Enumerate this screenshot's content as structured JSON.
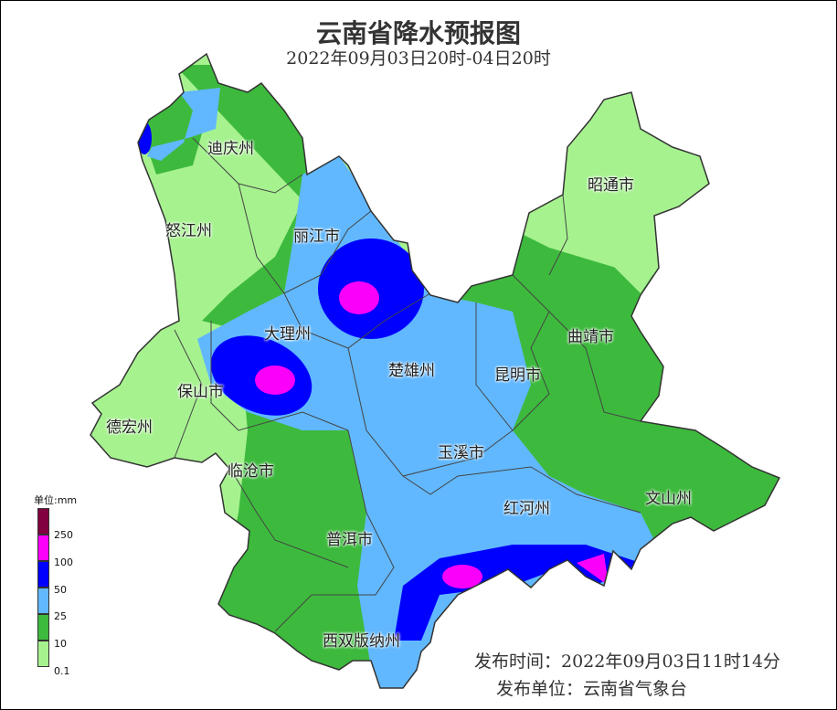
{
  "title": "云南省降水预报图",
  "subtitle": "2022年09月03日20时-04日20时",
  "cities": [
    "迪庆州",
    "怒江州",
    "丽江市",
    "昭通市",
    "大理州",
    "曲靖市",
    "楚雄州",
    "昆明市",
    "保山市",
    "德宏州",
    "玉溪市",
    "临沧市",
    "文山州",
    "红河州",
    "普洱市",
    "西双版纳州"
  ],
  "legend": {
    "unit": "单位:mm",
    "levels": [
      {
        "label": "0.1",
        "color": "#a6f28f"
      },
      {
        "label": "10",
        "color": "#3dba3d"
      },
      {
        "label": "25",
        "color": "#61b8ff"
      },
      {
        "label": "50",
        "color": "#0000fe"
      },
      {
        "label": "100",
        "color": "#fa00fa"
      },
      {
        "label": "250",
        "color": "#800040"
      }
    ]
  },
  "release": {
    "time": "发布时间：2022年09月03日11时14分",
    "unit": "发布单位：云南省气象台"
  }
}
